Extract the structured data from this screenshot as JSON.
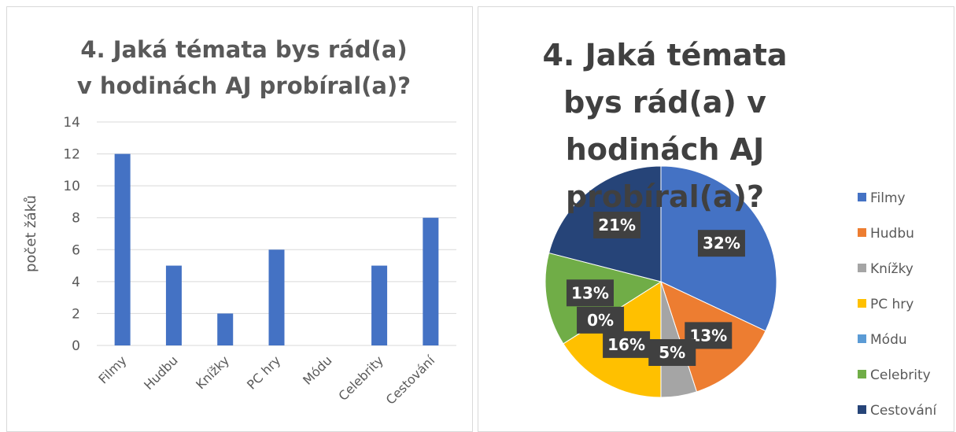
{
  "chart_data": [
    {
      "type": "bar",
      "title": "4. Jaká témata bys rád(a) v hodinách AJ probíral(a)?",
      "ylabel": "počet žáků",
      "categories": [
        "Filmy",
        "Hudbu",
        "Knížky",
        "PC hry",
        "Módu",
        "Celebrity",
        "Cestování"
      ],
      "values": [
        12,
        5,
        2,
        6,
        0,
        5,
        8
      ],
      "color": "#4472c4",
      "ylim": [
        0,
        14
      ],
      "yticks": [
        0,
        2,
        4,
        6,
        8,
        10,
        12,
        14
      ],
      "grid": true
    },
    {
      "type": "pie",
      "title": "4. Jaká témata bys rád(a) v hodinách AJ probíral(a)?",
      "categories": [
        "Filmy",
        "Hudbu",
        "Knížky",
        "PC hry",
        "Módu",
        "Celebrity",
        "Cestování"
      ],
      "values": [
        32,
        13,
        5,
        16,
        0,
        13,
        21
      ],
      "value_labels": [
        "32%",
        "13%",
        "5%",
        "16%",
        "0%",
        "13%",
        "21%"
      ],
      "colors": [
        "#4472c4",
        "#ed7d31",
        "#a5a5a5",
        "#ffc000",
        "#5b9bd5",
        "#70ad47",
        "#264478"
      ],
      "legend": "right"
    }
  ]
}
